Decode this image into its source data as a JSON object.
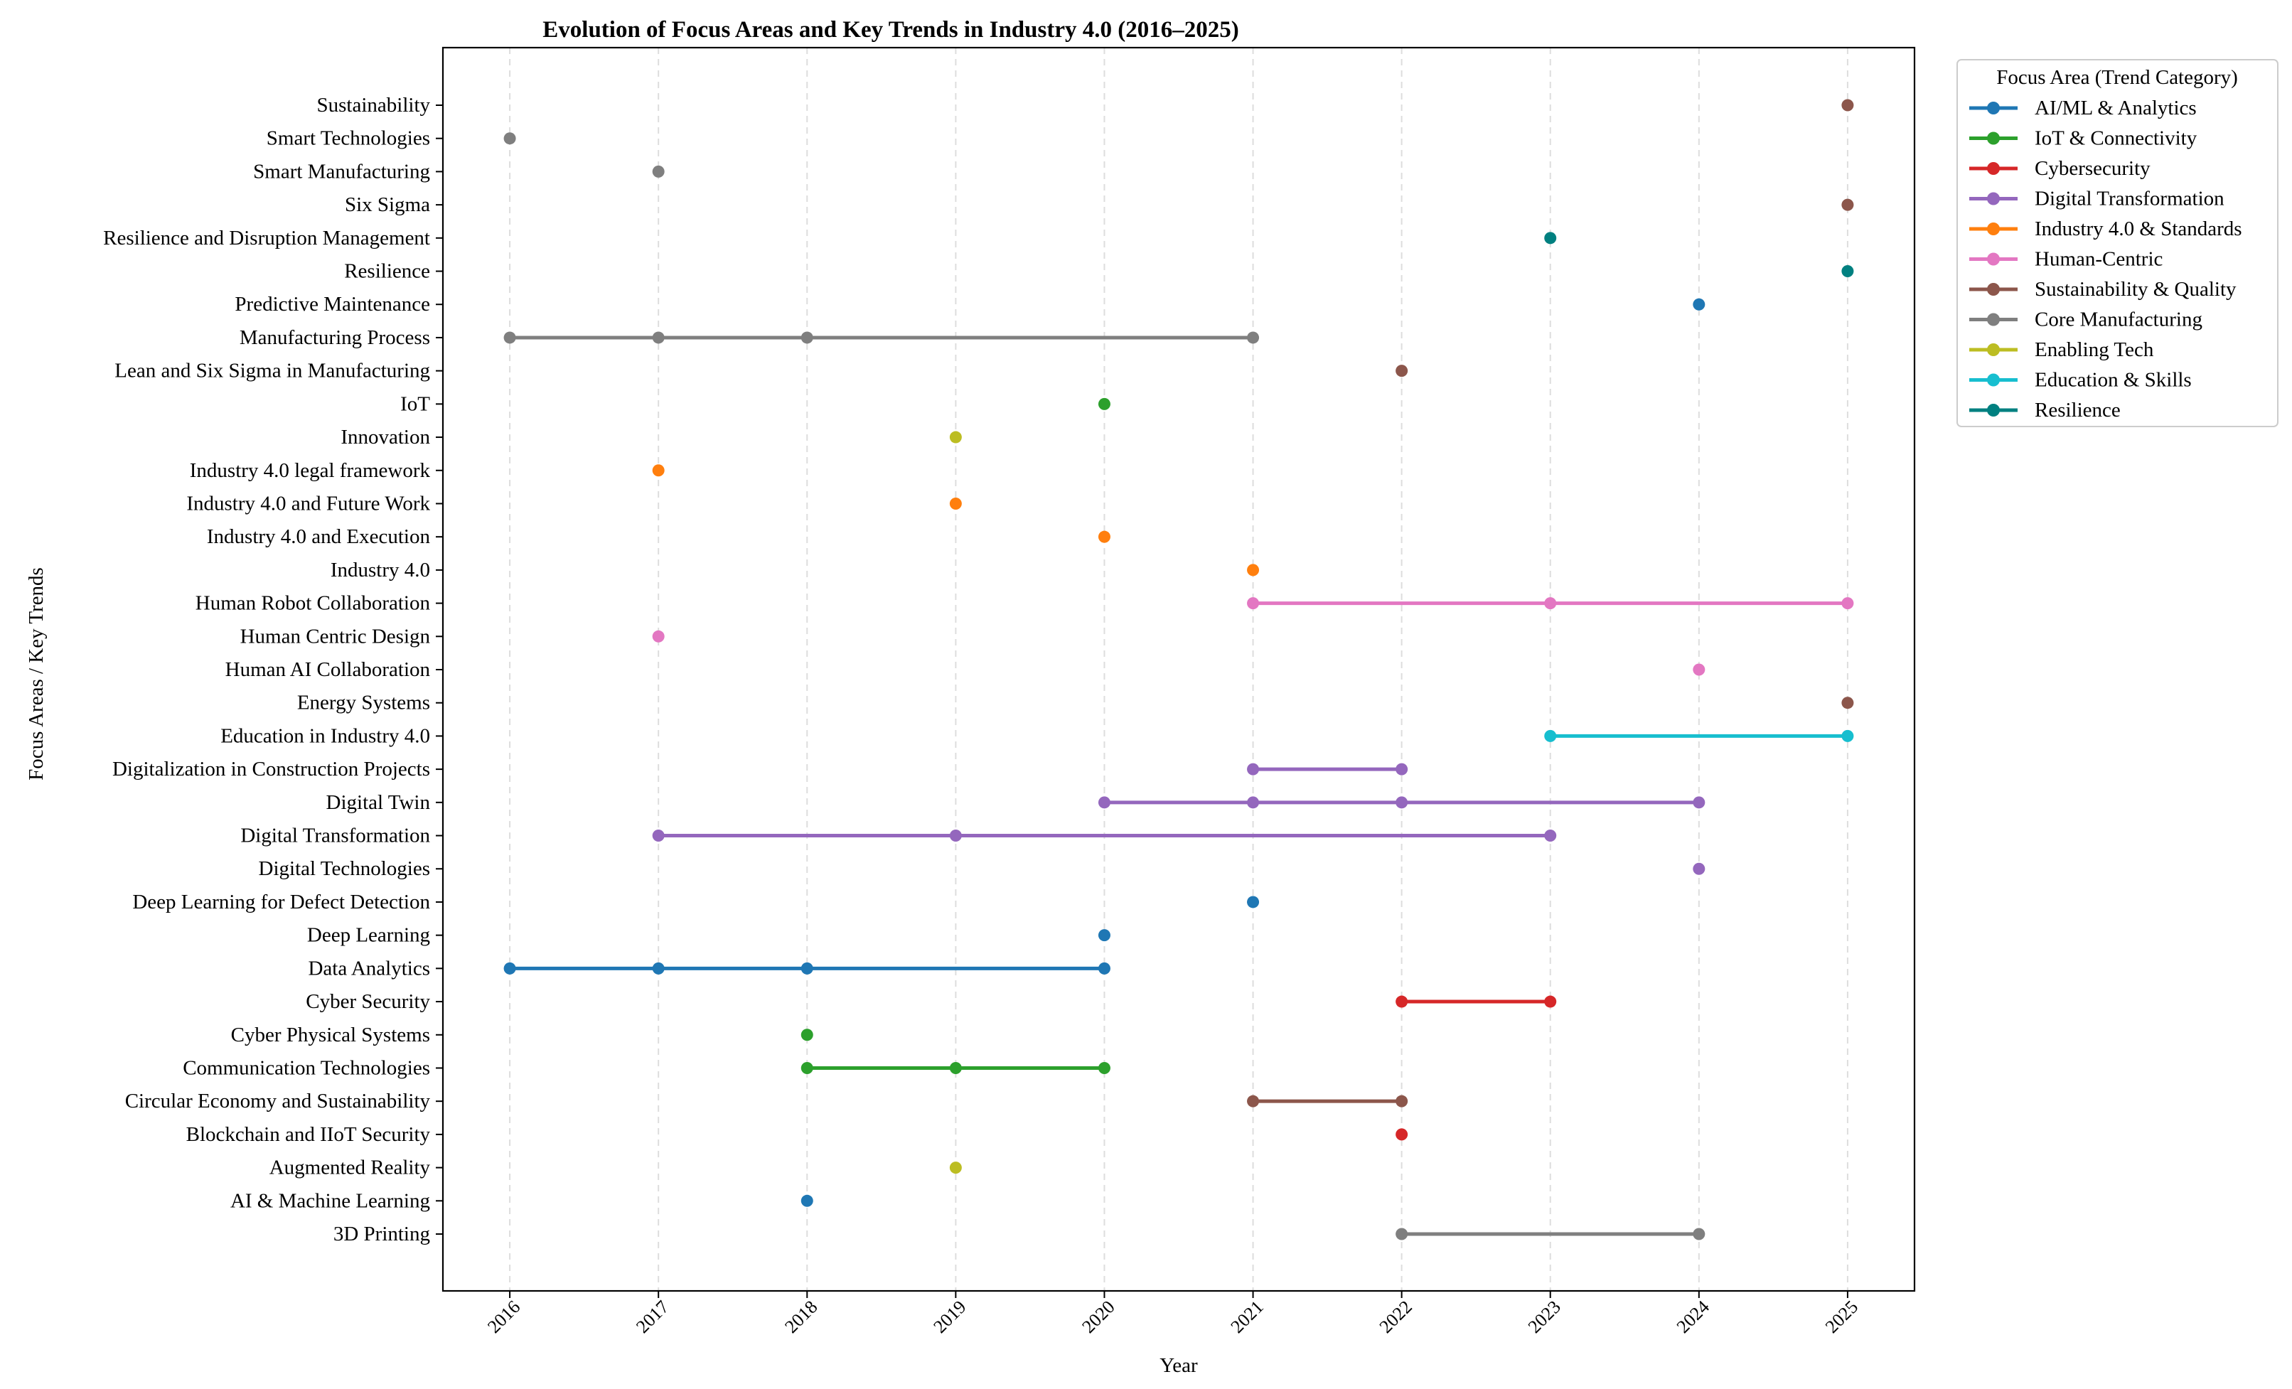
{
  "chart_data": {
    "type": "line",
    "title": "Evolution of Focus Areas and Key Trends in Industry 4.0 (2016–2025)",
    "xlabel": "Year",
    "ylabel": "Focus Areas / Key Trends",
    "x_ticks": [
      2016,
      2017,
      2018,
      2019,
      2020,
      2021,
      2022,
      2023,
      2024,
      2025
    ],
    "xlim": [
      2015.55,
      2025.45
    ],
    "grid": "vertical dashed",
    "legend": {
      "title": "Focus Area (Trend Category)",
      "placement": "outside-top-right",
      "entries": [
        {
          "name": "AI/ML & Analytics",
          "color": "#1f77b4"
        },
        {
          "name": "IoT & Connectivity",
          "color": "#2ca02c"
        },
        {
          "name": "Cybersecurity",
          "color": "#d62728"
        },
        {
          "name": "Digital Transformation",
          "color": "#9467bd"
        },
        {
          "name": "Industry 4.0 & Standards",
          "color": "#ff7f0e"
        },
        {
          "name": "Human-Centric",
          "color": "#e377c2"
        },
        {
          "name": "Sustainability & Quality",
          "color": "#8c564b"
        },
        {
          "name": "Core Manufacturing",
          "color": "#7f7f7f"
        },
        {
          "name": "Enabling Tech",
          "color": "#bcbd22"
        },
        {
          "name": "Education & Skills",
          "color": "#17becf"
        },
        {
          "name": "Resilience",
          "color": "#008080"
        }
      ]
    },
    "categories": [
      "3D Printing",
      "AI & Machine Learning",
      "Augmented Reality",
      "Blockchain and IIoT Security",
      "Circular Economy and Sustainability",
      "Communication Technologies",
      "Cyber Physical Systems",
      "Cyber Security",
      "Data Analytics",
      "Deep Learning",
      "Deep Learning for Defect Detection",
      "Digital Technologies",
      "Digital Transformation",
      "Digital Twin",
      "Digitalization in Construction Projects",
      "Education in Industry 4.0",
      "Energy Systems",
      "Human AI Collaboration",
      "Human Centric Design",
      "Human Robot Collaboration",
      "Industry 4.0",
      "Industry 4.0 and Execution",
      "Industry 4.0 and Future Work",
      "Industry 4.0 legal framework",
      "Innovation",
      "IoT",
      "Lean and Six Sigma in Manufacturing",
      "Manufacturing Process",
      "Predictive Maintenance",
      "Resilience",
      "Resilience and Disruption Management",
      "Six Sigma",
      "Smart Manufacturing",
      "Smart Technologies",
      "Sustainability"
    ],
    "series": [
      {
        "category": "3D Printing",
        "group": "Core Manufacturing",
        "years": [
          2022,
          2024
        ]
      },
      {
        "category": "AI & Machine Learning",
        "group": "AI/ML & Analytics",
        "years": [
          2018
        ]
      },
      {
        "category": "Augmented Reality",
        "group": "Enabling Tech",
        "years": [
          2019
        ]
      },
      {
        "category": "Blockchain and IIoT Security",
        "group": "Cybersecurity",
        "years": [
          2022
        ]
      },
      {
        "category": "Circular Economy and Sustainability",
        "group": "Sustainability & Quality",
        "years": [
          2021,
          2022
        ]
      },
      {
        "category": "Communication Technologies",
        "group": "IoT & Connectivity",
        "years": [
          2018,
          2019,
          2020
        ]
      },
      {
        "category": "Cyber Physical Systems",
        "group": "IoT & Connectivity",
        "years": [
          2018
        ]
      },
      {
        "category": "Cyber Security",
        "group": "Cybersecurity",
        "years": [
          2022,
          2023
        ]
      },
      {
        "category": "Data Analytics",
        "group": "AI/ML & Analytics",
        "years": [
          2016,
          2017,
          2018,
          2020
        ]
      },
      {
        "category": "Deep Learning",
        "group": "AI/ML & Analytics",
        "years": [
          2020
        ]
      },
      {
        "category": "Deep Learning for Defect Detection",
        "group": "AI/ML & Analytics",
        "years": [
          2021
        ]
      },
      {
        "category": "Digital Technologies",
        "group": "Digital Transformation",
        "years": [
          2024
        ]
      },
      {
        "category": "Digital Transformation",
        "group": "Digital Transformation",
        "years": [
          2017,
          2019,
          2023
        ]
      },
      {
        "category": "Digital Twin",
        "group": "Digital Transformation",
        "years": [
          2020,
          2021,
          2022,
          2024
        ]
      },
      {
        "category": "Digitalization in Construction Projects",
        "group": "Digital Transformation",
        "years": [
          2021,
          2022
        ]
      },
      {
        "category": "Education in Industry 4.0",
        "group": "Education & Skills",
        "years": [
          2023,
          2025
        ]
      },
      {
        "category": "Energy Systems",
        "group": "Sustainability & Quality",
        "years": [
          2025
        ]
      },
      {
        "category": "Human AI Collaboration",
        "group": "Human-Centric",
        "years": [
          2024
        ]
      },
      {
        "category": "Human Centric Design",
        "group": "Human-Centric",
        "years": [
          2017
        ]
      },
      {
        "category": "Human Robot Collaboration",
        "group": "Human-Centric",
        "years": [
          2021,
          2023,
          2025
        ]
      },
      {
        "category": "Industry 4.0",
        "group": "Industry 4.0 & Standards",
        "years": [
          2021
        ]
      },
      {
        "category": "Industry 4.0 and Execution",
        "group": "Industry 4.0 & Standards",
        "years": [
          2020
        ]
      },
      {
        "category": "Industry 4.0 and Future Work",
        "group": "Industry 4.0 & Standards",
        "years": [
          2019
        ]
      },
      {
        "category": "Industry 4.0 legal framework",
        "group": "Industry 4.0 & Standards",
        "years": [
          2017
        ]
      },
      {
        "category": "Innovation",
        "group": "Enabling Tech",
        "years": [
          2019
        ]
      },
      {
        "category": "IoT",
        "group": "IoT & Connectivity",
        "years": [
          2020
        ]
      },
      {
        "category": "Lean and Six Sigma in Manufacturing",
        "group": "Sustainability & Quality",
        "years": [
          2022
        ]
      },
      {
        "category": "Manufacturing Process",
        "group": "Core Manufacturing",
        "years": [
          2016,
          2017,
          2018,
          2021
        ]
      },
      {
        "category": "Predictive Maintenance",
        "group": "AI/ML & Analytics",
        "years": [
          2024
        ]
      },
      {
        "category": "Resilience",
        "group": "Resilience",
        "years": [
          2025
        ]
      },
      {
        "category": "Resilience and Disruption Management",
        "group": "Resilience",
        "years": [
          2023
        ]
      },
      {
        "category": "Six Sigma",
        "group": "Sustainability & Quality",
        "years": [
          2025
        ]
      },
      {
        "category": "Smart Manufacturing",
        "group": "Core Manufacturing",
        "years": [
          2017
        ]
      },
      {
        "category": "Smart Technologies",
        "group": "Core Manufacturing",
        "years": [
          2016
        ]
      },
      {
        "category": "Sustainability",
        "group": "Sustainability & Quality",
        "years": [
          2025
        ]
      }
    ]
  }
}
